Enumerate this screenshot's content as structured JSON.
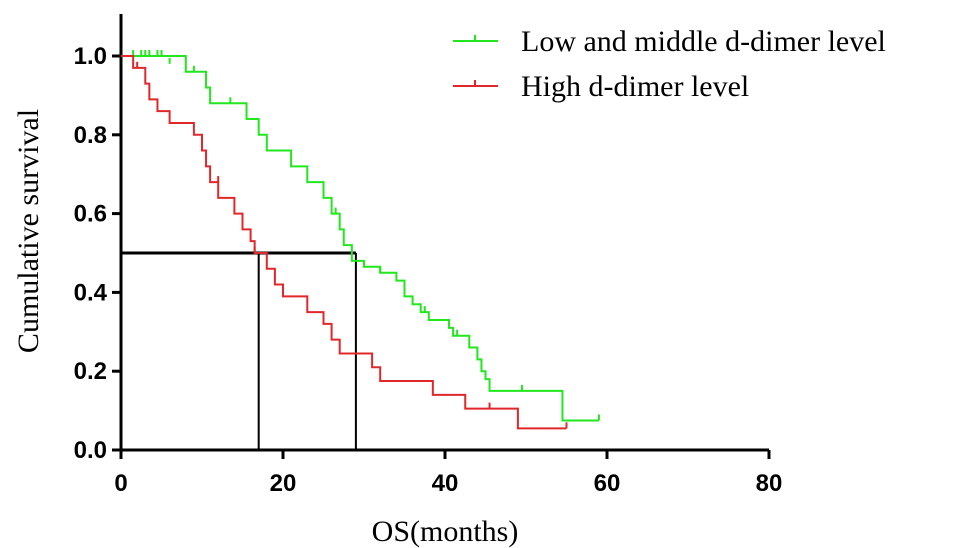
{
  "chart_data": {
    "type": "line",
    "xlabel": "OS(months)",
    "ylabel": "Cumulative  survival",
    "xlim": [
      0,
      80
    ],
    "ylim": [
      0,
      1.0
    ],
    "xticks": [
      "0",
      "20",
      "40",
      "60",
      "80"
    ],
    "yticks": [
      "0.0",
      "0.2",
      "0.4",
      "0.6",
      "0.8",
      "1.0"
    ],
    "grid": false,
    "legend_position": "top-right",
    "series": [
      {
        "name": "Low and middle d-dimer level",
        "color": "#22e61e",
        "steps": [
          [
            0,
            1.0
          ],
          [
            8,
            0.96
          ],
          [
            10.5,
            0.92
          ],
          [
            11,
            0.88
          ],
          [
            15.5,
            0.84
          ],
          [
            17,
            0.8
          ],
          [
            18,
            0.76
          ],
          [
            21,
            0.72
          ],
          [
            23,
            0.68
          ],
          [
            25,
            0.64
          ],
          [
            26,
            0.6
          ],
          [
            27,
            0.56
          ],
          [
            27.5,
            0.52
          ],
          [
            28.5,
            0.48
          ],
          [
            30,
            0.465
          ],
          [
            32,
            0.45
          ],
          [
            34,
            0.43
          ],
          [
            35,
            0.39
          ],
          [
            36,
            0.37
          ],
          [
            37,
            0.35
          ],
          [
            38,
            0.33
          ],
          [
            40.5,
            0.31
          ],
          [
            41,
            0.29
          ],
          [
            43,
            0.26
          ],
          [
            44,
            0.23
          ],
          [
            44.5,
            0.2
          ],
          [
            45,
            0.18
          ],
          [
            45.5,
            0.15
          ],
          [
            54.5,
            0.075
          ],
          [
            59,
            0.075
          ]
        ],
        "censor": [
          [
            1.5,
            1.0
          ],
          [
            2.5,
            1.0
          ],
          [
            3,
            1.0
          ],
          [
            3.5,
            1.0
          ],
          [
            4.5,
            1.0
          ],
          [
            5,
            1.0
          ],
          [
            6,
            0.98
          ],
          [
            9,
            0.96
          ],
          [
            13.5,
            0.88
          ],
          [
            26.5,
            0.6
          ],
          [
            32,
            0.45
          ],
          [
            37.5,
            0.35
          ],
          [
            41.5,
            0.29
          ],
          [
            49.5,
            0.15
          ],
          [
            59,
            0.075
          ]
        ]
      },
      {
        "name": "High d-dimer level",
        "color": "#e0282b",
        "steps": [
          [
            0,
            1.0
          ],
          [
            1.5,
            0.97
          ],
          [
            3,
            0.93
          ],
          [
            3.5,
            0.89
          ],
          [
            4.5,
            0.86
          ],
          [
            6,
            0.83
          ],
          [
            9,
            0.8
          ],
          [
            10,
            0.76
          ],
          [
            10.5,
            0.72
          ],
          [
            11,
            0.68
          ],
          [
            12,
            0.64
          ],
          [
            14,
            0.6
          ],
          [
            15,
            0.56
          ],
          [
            16,
            0.53
          ],
          [
            16.5,
            0.5
          ],
          [
            18,
            0.46
          ],
          [
            19,
            0.42
          ],
          [
            20,
            0.39
          ],
          [
            23,
            0.35
          ],
          [
            25,
            0.32
          ],
          [
            26,
            0.28
          ],
          [
            27,
            0.245
          ],
          [
            31,
            0.21
          ],
          [
            32,
            0.175
          ],
          [
            38.5,
            0.14
          ],
          [
            42.5,
            0.105
          ],
          [
            49,
            0.055
          ],
          [
            55,
            0.055
          ]
        ],
        "censor": [
          [
            2,
            0.97
          ],
          [
            12,
            0.68
          ],
          [
            16.5,
            0.5
          ],
          [
            45.5,
            0.105
          ],
          [
            55,
            0.055
          ]
        ]
      }
    ],
    "reference_lines": [
      {
        "type": "horizontal",
        "y": 0.5,
        "x_from": 0,
        "x_to": 29
      },
      {
        "type": "vertical",
        "x": 17,
        "y_from": 0,
        "y_to": 0.5
      },
      {
        "type": "vertical",
        "x": 29,
        "y_from": 0,
        "y_to": 0.5
      }
    ]
  }
}
